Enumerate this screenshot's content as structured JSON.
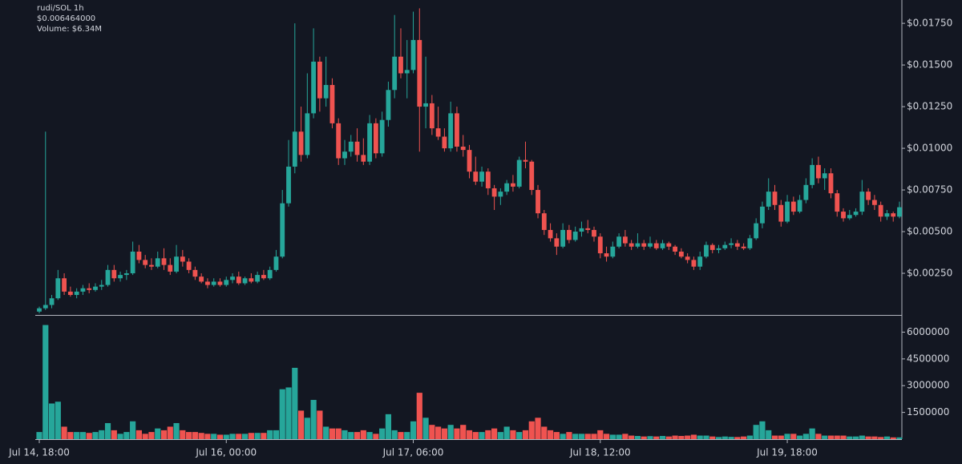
{
  "chart_data": {
    "type": "candlestick",
    "title": "rudi/SOL 1h",
    "annotations": [
      "$0.006464000",
      "Volume: $6.34M"
    ],
    "up_color": "#26a69a",
    "down_color": "#ef5350",
    "x": [
      "Jul 14, 18:00",
      null,
      null,
      null,
      null,
      null,
      null,
      null,
      null,
      null,
      null,
      null,
      null,
      null,
      null,
      null,
      null,
      null,
      null,
      null,
      null,
      null,
      null,
      null,
      null,
      null,
      null,
      null,
      null,
      null,
      "Jul 16, 00:00",
      null,
      null,
      null,
      null,
      null,
      null,
      null,
      null,
      null,
      null,
      null,
      null,
      null,
      null,
      null,
      null,
      null,
      null,
      null,
      null,
      null,
      null,
      null,
      null,
      null,
      null,
      null,
      null,
      null,
      "Jul 17, 06:00",
      null,
      null,
      null,
      null,
      null,
      null,
      null,
      null,
      null,
      null,
      null,
      null,
      null,
      null,
      null,
      null,
      null,
      null,
      null,
      null,
      null,
      null,
      null,
      null,
      null,
      null,
      null,
      null,
      null,
      "Jul 18, 12:00",
      null,
      null,
      null,
      null,
      null,
      null,
      null,
      null,
      null,
      null,
      null,
      null,
      null,
      null,
      null,
      null,
      null,
      null,
      null,
      null,
      null,
      null,
      null,
      null,
      null,
      null,
      null,
      null,
      null,
      "Jul 19, 18:00",
      null,
      null,
      null,
      null,
      null,
      null,
      null,
      null,
      null,
      null,
      null,
      null,
      null,
      null,
      null,
      null,
      null,
      null
    ],
    "ohlc": [
      [
        0.0002,
        0.0005,
        0.0001,
        0.0004
      ],
      [
        0.0004,
        0.011,
        0.0003,
        0.0006
      ],
      [
        0.0006,
        0.0012,
        0.0004,
        0.001
      ],
      [
        0.001,
        0.0027,
        0.0009,
        0.0022
      ],
      [
        0.0022,
        0.0025,
        0.0012,
        0.0014
      ],
      [
        0.0014,
        0.0017,
        0.0011,
        0.0012
      ],
      [
        0.0012,
        0.0016,
        0.001,
        0.0014
      ],
      [
        0.0014,
        0.0018,
        0.0012,
        0.0016
      ],
      [
        0.0016,
        0.0019,
        0.0013,
        0.0015
      ],
      [
        0.0015,
        0.0019,
        0.0014,
        0.0017
      ],
      [
        0.0017,
        0.0021,
        0.0015,
        0.0018
      ],
      [
        0.0018,
        0.003,
        0.0017,
        0.0027
      ],
      [
        0.0027,
        0.003,
        0.002,
        0.0022
      ],
      [
        0.0022,
        0.0026,
        0.002,
        0.0024
      ],
      [
        0.0024,
        0.0027,
        0.0021,
        0.0025
      ],
      [
        0.0025,
        0.0044,
        0.0024,
        0.0038
      ],
      [
        0.0038,
        0.0042,
        0.0031,
        0.0033
      ],
      [
        0.0033,
        0.0036,
        0.0028,
        0.003
      ],
      [
        0.003,
        0.0034,
        0.0027,
        0.0029
      ],
      [
        0.0029,
        0.0038,
        0.0028,
        0.0034
      ],
      [
        0.0034,
        0.004,
        0.0027,
        0.003
      ],
      [
        0.003,
        0.0034,
        0.0024,
        0.0026
      ],
      [
        0.0026,
        0.0042,
        0.0025,
        0.0035
      ],
      [
        0.0035,
        0.0039,
        0.0029,
        0.0032
      ],
      [
        0.0032,
        0.0034,
        0.0025,
        0.0027
      ],
      [
        0.0027,
        0.0029,
        0.0021,
        0.0023
      ],
      [
        0.0023,
        0.0025,
        0.0019,
        0.002
      ],
      [
        0.002,
        0.0022,
        0.0016,
        0.0018
      ],
      [
        0.0018,
        0.0022,
        0.0017,
        0.002
      ],
      [
        0.002,
        0.0022,
        0.0017,
        0.0018
      ],
      [
        0.0018,
        0.0023,
        0.0017,
        0.0021
      ],
      [
        0.0021,
        0.0025,
        0.0019,
        0.0023
      ],
      [
        0.0023,
        0.0026,
        0.0018,
        0.0019
      ],
      [
        0.0019,
        0.0023,
        0.0018,
        0.0022
      ],
      [
        0.0022,
        0.0025,
        0.0019,
        0.002
      ],
      [
        0.002,
        0.0026,
        0.0019,
        0.0024
      ],
      [
        0.0024,
        0.0027,
        0.0021,
        0.0022
      ],
      [
        0.0022,
        0.0029,
        0.0021,
        0.0027
      ],
      [
        0.0027,
        0.0039,
        0.0026,
        0.0035
      ],
      [
        0.0035,
        0.0075,
        0.0034,
        0.0067
      ],
      [
        0.0067,
        0.0105,
        0.0065,
        0.0089
      ],
      [
        0.0089,
        0.0175,
        0.0085,
        0.011
      ],
      [
        0.011,
        0.0125,
        0.0092,
        0.0096
      ],
      [
        0.0096,
        0.0145,
        0.0094,
        0.0121
      ],
      [
        0.0121,
        0.0172,
        0.0118,
        0.0152
      ],
      [
        0.0152,
        0.0155,
        0.0122,
        0.013
      ],
      [
        0.013,
        0.0155,
        0.0125,
        0.0138
      ],
      [
        0.0138,
        0.0142,
        0.0112,
        0.0115
      ],
      [
        0.0115,
        0.0118,
        0.009,
        0.0094
      ],
      [
        0.0094,
        0.0105,
        0.009,
        0.0098
      ],
      [
        0.0098,
        0.0108,
        0.0095,
        0.0104
      ],
      [
        0.0104,
        0.0112,
        0.0092,
        0.0096
      ],
      [
        0.0096,
        0.0106,
        0.009,
        0.0092
      ],
      [
        0.0092,
        0.012,
        0.009,
        0.0115
      ],
      [
        0.0115,
        0.0118,
        0.0094,
        0.0097
      ],
      [
        0.0097,
        0.0122,
        0.0095,
        0.0117
      ],
      [
        0.0117,
        0.014,
        0.0113,
        0.0135
      ],
      [
        0.0135,
        0.018,
        0.013,
        0.0155
      ],
      [
        0.0155,
        0.0172,
        0.0142,
        0.0145
      ],
      [
        0.0145,
        0.0165,
        0.013,
        0.0147
      ],
      [
        0.0147,
        0.0182,
        0.0145,
        0.0165
      ],
      [
        0.0165,
        0.0184,
        0.0098,
        0.0125
      ],
      [
        0.0125,
        0.0155,
        0.0112,
        0.0127
      ],
      [
        0.0127,
        0.0132,
        0.0108,
        0.0112
      ],
      [
        0.0112,
        0.0125,
        0.0105,
        0.0107
      ],
      [
        0.0107,
        0.0112,
        0.0098,
        0.01
      ],
      [
        0.01,
        0.0128,
        0.0098,
        0.0121
      ],
      [
        0.0121,
        0.0125,
        0.0098,
        0.0101
      ],
      [
        0.0101,
        0.0108,
        0.0095,
        0.0099
      ],
      [
        0.0099,
        0.0102,
        0.0082,
        0.0086
      ],
      [
        0.0086,
        0.0095,
        0.0078,
        0.008
      ],
      [
        0.008,
        0.0089,
        0.0077,
        0.0086
      ],
      [
        0.0086,
        0.0088,
        0.0072,
        0.0076
      ],
      [
        0.0076,
        0.0078,
        0.0063,
        0.0071
      ],
      [
        0.0071,
        0.0076,
        0.0066,
        0.0074
      ],
      [
        0.0074,
        0.0081,
        0.0072,
        0.0079
      ],
      [
        0.0079,
        0.0084,
        0.0074,
        0.0077
      ],
      [
        0.0077,
        0.0095,
        0.0076,
        0.0093
      ],
      [
        0.0093,
        0.0104,
        0.0088,
        0.0092
      ],
      [
        0.0092,
        0.0093,
        0.0072,
        0.0075
      ],
      [
        0.0075,
        0.0078,
        0.0058,
        0.0061
      ],
      [
        0.0061,
        0.0063,
        0.0048,
        0.0051
      ],
      [
        0.0051,
        0.0055,
        0.0044,
        0.0046
      ],
      [
        0.0046,
        0.0049,
        0.0036,
        0.0041
      ],
      [
        0.0041,
        0.0055,
        0.004,
        0.0051
      ],
      [
        0.0051,
        0.0054,
        0.0043,
        0.0045
      ],
      [
        0.0045,
        0.0053,
        0.0044,
        0.005
      ],
      [
        0.005,
        0.0056,
        0.0047,
        0.0052
      ],
      [
        0.0052,
        0.0057,
        0.0049,
        0.0051
      ],
      [
        0.0051,
        0.0053,
        0.0044,
        0.0047
      ],
      [
        0.0047,
        0.0049,
        0.0034,
        0.0037
      ],
      [
        0.0037,
        0.0041,
        0.0032,
        0.0035
      ],
      [
        0.0035,
        0.0044,
        0.0034,
        0.0041
      ],
      [
        0.0041,
        0.0049,
        0.004,
        0.0047
      ],
      [
        0.0047,
        0.0051,
        0.0041,
        0.0043
      ],
      [
        0.0043,
        0.0045,
        0.0039,
        0.0041
      ],
      [
        0.0041,
        0.0049,
        0.004,
        0.0043
      ],
      [
        0.0043,
        0.0045,
        0.0039,
        0.0041
      ],
      [
        0.0041,
        0.0047,
        0.004,
        0.0043
      ],
      [
        0.0043,
        0.0045,
        0.0039,
        0.004
      ],
      [
        0.004,
        0.0045,
        0.0039,
        0.0043
      ],
      [
        0.0043,
        0.0044,
        0.0039,
        0.0041
      ],
      [
        0.0041,
        0.0042,
        0.0036,
        0.0038
      ],
      [
        0.0038,
        0.004,
        0.0034,
        0.0035
      ],
      [
        0.0035,
        0.0037,
        0.0031,
        0.0033
      ],
      [
        0.0033,
        0.0035,
        0.0027,
        0.0029
      ],
      [
        0.0029,
        0.0038,
        0.0027,
        0.0035
      ],
      [
        0.0035,
        0.0044,
        0.0034,
        0.0042
      ],
      [
        0.0042,
        0.0043,
        0.0037,
        0.0039
      ],
      [
        0.0039,
        0.0042,
        0.0037,
        0.004
      ],
      [
        0.004,
        0.0044,
        0.0039,
        0.0042
      ],
      [
        0.0042,
        0.0046,
        0.004,
        0.0043
      ],
      [
        0.0043,
        0.0045,
        0.0039,
        0.0041
      ],
      [
        0.0041,
        0.0043,
        0.0039,
        0.004
      ],
      [
        0.004,
        0.0048,
        0.0039,
        0.0046
      ],
      [
        0.0046,
        0.0058,
        0.0045,
        0.0055
      ],
      [
        0.0055,
        0.0068,
        0.0052,
        0.0065
      ],
      [
        0.0065,
        0.0082,
        0.0063,
        0.0074
      ],
      [
        0.0074,
        0.0078,
        0.0063,
        0.0066
      ],
      [
        0.0066,
        0.0069,
        0.0053,
        0.0056
      ],
      [
        0.0056,
        0.0072,
        0.0055,
        0.0068
      ],
      [
        0.0068,
        0.0071,
        0.006,
        0.0062
      ],
      [
        0.0062,
        0.0072,
        0.0061,
        0.0069
      ],
      [
        0.0069,
        0.0082,
        0.0067,
        0.0078
      ],
      [
        0.0078,
        0.0094,
        0.0076,
        0.009
      ],
      [
        0.009,
        0.0095,
        0.0079,
        0.0082
      ],
      [
        0.0082,
        0.0088,
        0.0075,
        0.0085
      ],
      [
        0.0085,
        0.0088,
        0.007,
        0.0073
      ],
      [
        0.0073,
        0.0075,
        0.0059,
        0.0062
      ],
      [
        0.0062,
        0.0064,
        0.0056,
        0.0058
      ],
      [
        0.0058,
        0.0063,
        0.0057,
        0.006
      ],
      [
        0.006,
        0.0064,
        0.0059,
        0.0062
      ],
      [
        0.0062,
        0.0081,
        0.006,
        0.0074
      ],
      [
        0.0074,
        0.0076,
        0.0066,
        0.0069
      ],
      [
        0.0069,
        0.0072,
        0.0063,
        0.0066
      ],
      [
        0.0066,
        0.0068,
        0.0056,
        0.0059
      ],
      [
        0.0059,
        0.0063,
        0.0057,
        0.0061
      ],
      [
        0.0061,
        0.0062,
        0.0056,
        0.0059
      ],
      [
        0.0059,
        0.0068,
        0.0058,
        0.006464
      ]
    ],
    "volume": [
      400000,
      6400000,
      2000000,
      2100000,
      700000,
      400000,
      400000,
      400000,
      350000,
      400000,
      500000,
      900000,
      500000,
      300000,
      400000,
      1000000,
      500000,
      300000,
      400000,
      600000,
      500000,
      700000,
      900000,
      500000,
      400000,
      400000,
      350000,
      300000,
      300000,
      250000,
      250000,
      300000,
      300000,
      300000,
      350000,
      350000,
      350000,
      500000,
      500000,
      2800000,
      2900000,
      4000000,
      1600000,
      1200000,
      2200000,
      1600000,
      700000,
      600000,
      600000,
      500000,
      400000,
      400000,
      500000,
      400000,
      300000,
      600000,
      1400000,
      500000,
      400000,
      400000,
      1000000,
      2600000,
      1200000,
      800000,
      700000,
      600000,
      800000,
      600000,
      800000,
      500000,
      400000,
      400000,
      500000,
      600000,
      400000,
      700000,
      500000,
      400000,
      500000,
      1000000,
      1200000,
      700000,
      500000,
      400000,
      300000,
      400000,
      300000,
      300000,
      300000,
      300000,
      500000,
      300000,
      250000,
      250000,
      300000,
      200000,
      180000,
      150000,
      170000,
      150000,
      180000,
      150000,
      200000,
      180000,
      200000,
      250000,
      200000,
      200000,
      150000,
      120000,
      150000,
      130000,
      120000,
      150000,
      200000,
      800000,
      1000000,
      500000,
      200000,
      200000,
      300000,
      300000,
      200000,
      300000,
      600000,
      300000,
      200000,
      200000,
      200000,
      200000,
      150000,
      150000,
      200000,
      150000,
      150000,
      120000,
      150000,
      100000,
      100000
    ],
    "ylim": [
      0,
      0.0189
    ],
    "yticks": [
      {
        "value": 0.0025,
        "label": "$0.00250"
      },
      {
        "value": 0.005,
        "label": "$0.00500"
      },
      {
        "value": 0.0075,
        "label": "$0.00750"
      },
      {
        "value": 0.01,
        "label": "$0.01000"
      },
      {
        "value": 0.0125,
        "label": "$0.01250"
      },
      {
        "value": 0.015,
        "label": "$0.01500"
      },
      {
        "value": 0.0175,
        "label": "$0.01750"
      }
    ],
    "y2lim": [
      0,
      6650000
    ],
    "y2ticks": [
      1500000,
      3000000,
      4500000,
      6000000
    ]
  }
}
